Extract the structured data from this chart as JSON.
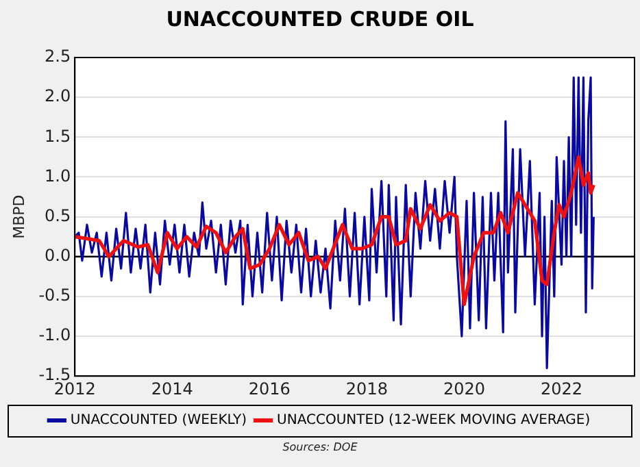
{
  "chart_data": {
    "type": "line",
    "title": "UNACCOUNTED CRUDE OIL",
    "ylabel": "MBPD",
    "annotations": [
      "Sources:  DOE"
    ],
    "xlim": [
      2012,
      2023.5
    ],
    "xticks": [
      2012,
      2014,
      2016,
      2018,
      2020,
      2022
    ],
    "ylim": [
      -1.5,
      2.5
    ],
    "yticks": [
      {
        "value": 2.5,
        "label": "2.5"
      },
      {
        "value": 2,
        "label": "2.0"
      },
      {
        "value": 1.5,
        "label": "1.5"
      },
      {
        "value": 1,
        "label": "1.0"
      },
      {
        "value": 0.5,
        "label": "0.5"
      },
      {
        "value": 0,
        "label": "0.0"
      },
      {
        "value": -0.5,
        "label": "-0.5"
      },
      {
        "value": -1,
        "label": "-1.0"
      },
      {
        "value": -1.5,
        "label": "-1.5"
      }
    ],
    "grid": "y",
    "legend": "bottom",
    "marker": "none",
    "line_style": "solid",
    "ref_lines": [
      {
        "axis": "y",
        "value": 0,
        "color": "#000000"
      }
    ],
    "series": [
      {
        "name": "UNACCOUNTED (WEEKLY)",
        "color": "#0a0aa0",
        "x": [
          2012,
          2012.08,
          2012.15,
          2012.25,
          2012.35,
          2012.45,
          2012.55,
          2012.65,
          2012.75,
          2012.85,
          2012.95,
          2013.05,
          2013.15,
          2013.25,
          2013.35,
          2013.45,
          2013.55,
          2013.65,
          2013.75,
          2013.85,
          2013.95,
          2014.05,
          2014.15,
          2014.25,
          2014.35,
          2014.45,
          2014.55,
          2014.62,
          2014.7,
          2014.8,
          2014.9,
          2015,
          2015.1,
          2015.2,
          2015.3,
          2015.4,
          2015.45,
          2015.55,
          2015.65,
          2015.75,
          2015.85,
          2015.95,
          2016.05,
          2016.15,
          2016.25,
          2016.35,
          2016.45,
          2016.55,
          2016.65,
          2016.75,
          2016.85,
          2016.95,
          2017.05,
          2017.15,
          2017.25,
          2017.35,
          2017.45,
          2017.55,
          2017.65,
          2017.75,
          2017.85,
          2017.95,
          2018.05,
          2018.1,
          2018.2,
          2018.3,
          2018.4,
          2018.45,
          2018.55,
          2018.6,
          2018.7,
          2018.8,
          2018.9,
          2019,
          2019.1,
          2019.2,
          2019.3,
          2019.4,
          2019.5,
          2019.6,
          2019.7,
          2019.8,
          2019.85,
          2019.95,
          2020.05,
          2020.12,
          2020.2,
          2020.3,
          2020.38,
          2020.45,
          2020.55,
          2020.62,
          2020.7,
          2020.8,
          2020.85,
          2020.9,
          2021,
          2021.05,
          2021.15,
          2021.25,
          2021.35,
          2021.45,
          2021.55,
          2021.6,
          2021.65,
          2021.7,
          2021.8,
          2021.85,
          2021.9,
          2022,
          2022.05,
          2022.1,
          2022.15,
          2022.2,
          2022.25,
          2022.3,
          2022.35,
          2022.4,
          2022.45,
          2022.5,
          2022.55,
          2022.6,
          2022.63,
          2022.66
        ],
        "values": [
          0.25,
          0.3,
          -0.05,
          0.4,
          0.05,
          0.3,
          -0.25,
          0.3,
          -0.3,
          0.35,
          -0.15,
          0.55,
          -0.2,
          0.35,
          -0.15,
          0.4,
          -0.45,
          0.3,
          -0.35,
          0.45,
          -0.1,
          0.4,
          -0.2,
          0.4,
          -0.25,
          0.3,
          0,
          0.68,
          0.1,
          0.45,
          -0.2,
          0.4,
          -0.35,
          0.45,
          0.05,
          0.45,
          -0.6,
          0.4,
          -0.5,
          0.3,
          -0.45,
          0.55,
          -0.3,
          0.5,
          -0.55,
          0.45,
          -0.2,
          0.4,
          -0.45,
          0.35,
          -0.5,
          0.2,
          -0.45,
          0.1,
          -0.65,
          0.45,
          -0.3,
          0.6,
          -0.5,
          0.55,
          -0.6,
          0.5,
          -0.55,
          0.85,
          -0.2,
          0.95,
          -0.5,
          0.9,
          -0.8,
          0.75,
          -0.85,
          0.9,
          -0.5,
          0.8,
          0.1,
          0.95,
          0.2,
          0.85,
          0.1,
          0.95,
          0.3,
          1,
          0,
          -1,
          0.7,
          -0.9,
          0.8,
          -0.8,
          0.75,
          -0.9,
          0.8,
          -0.3,
          0.8,
          -0.95,
          1.7,
          -0.2,
          1.35,
          -0.7,
          1.35,
          0,
          1.2,
          -0.6,
          0.8,
          -1,
          0.5,
          -1.4,
          0.7,
          -0.5,
          1.25,
          -0.1,
          1.2,
          0,
          1.5,
          0,
          2.25,
          0.4,
          2.25,
          0.3,
          2.25,
          -0.7,
          1.7,
          2.25,
          -0.4,
          0.5
        ]
      },
      {
        "name": "UNACCOUNTED (12-WEEK MOVING AVERAGE)",
        "color": "#ee1111",
        "x": [
          2012,
          2012.5,
          2012.7,
          2013,
          2013.3,
          2013.5,
          2013.7,
          2013.9,
          2014.1,
          2014.3,
          2014.5,
          2014.7,
          2014.9,
          2015.1,
          2015.3,
          2015.45,
          2015.6,
          2015.8,
          2016,
          2016.2,
          2016.4,
          2016.6,
          2016.8,
          2017,
          2017.15,
          2017.5,
          2017.7,
          2017.9,
          2018.1,
          2018.3,
          2018.45,
          2018.6,
          2018.8,
          2018.9,
          2019.1,
          2019.3,
          2019.5,
          2019.7,
          2019.85,
          2020,
          2020.2,
          2020.4,
          2020.6,
          2020.75,
          2020.9,
          2021.1,
          2021.3,
          2021.45,
          2021.6,
          2021.7,
          2021.85,
          2021.95,
          2022.05,
          2022.2,
          2022.35,
          2022.45,
          2022.55,
          2022.6,
          2022.66
        ],
        "values": [
          0.25,
          0.2,
          0,
          0.2,
          0.12,
          0.15,
          -0.2,
          0.3,
          0.1,
          0.25,
          0.12,
          0.38,
          0.3,
          0.05,
          0.25,
          0.35,
          -0.15,
          -0.1,
          0.1,
          0.4,
          0.15,
          0.3,
          -0.05,
          0,
          -0.15,
          0.4,
          0.1,
          0.1,
          0.15,
          0.5,
          0.5,
          0.15,
          0.2,
          0.6,
          0.35,
          0.65,
          0.45,
          0.55,
          0.5,
          -0.6,
          0,
          0.3,
          0.3,
          0.55,
          0.3,
          0.8,
          0.6,
          0.45,
          -0.3,
          -0.35,
          0.3,
          0.65,
          0.5,
          0.8,
          1.25,
          0.9,
          1.05,
          0.8,
          0.9
        ]
      }
    ]
  }
}
